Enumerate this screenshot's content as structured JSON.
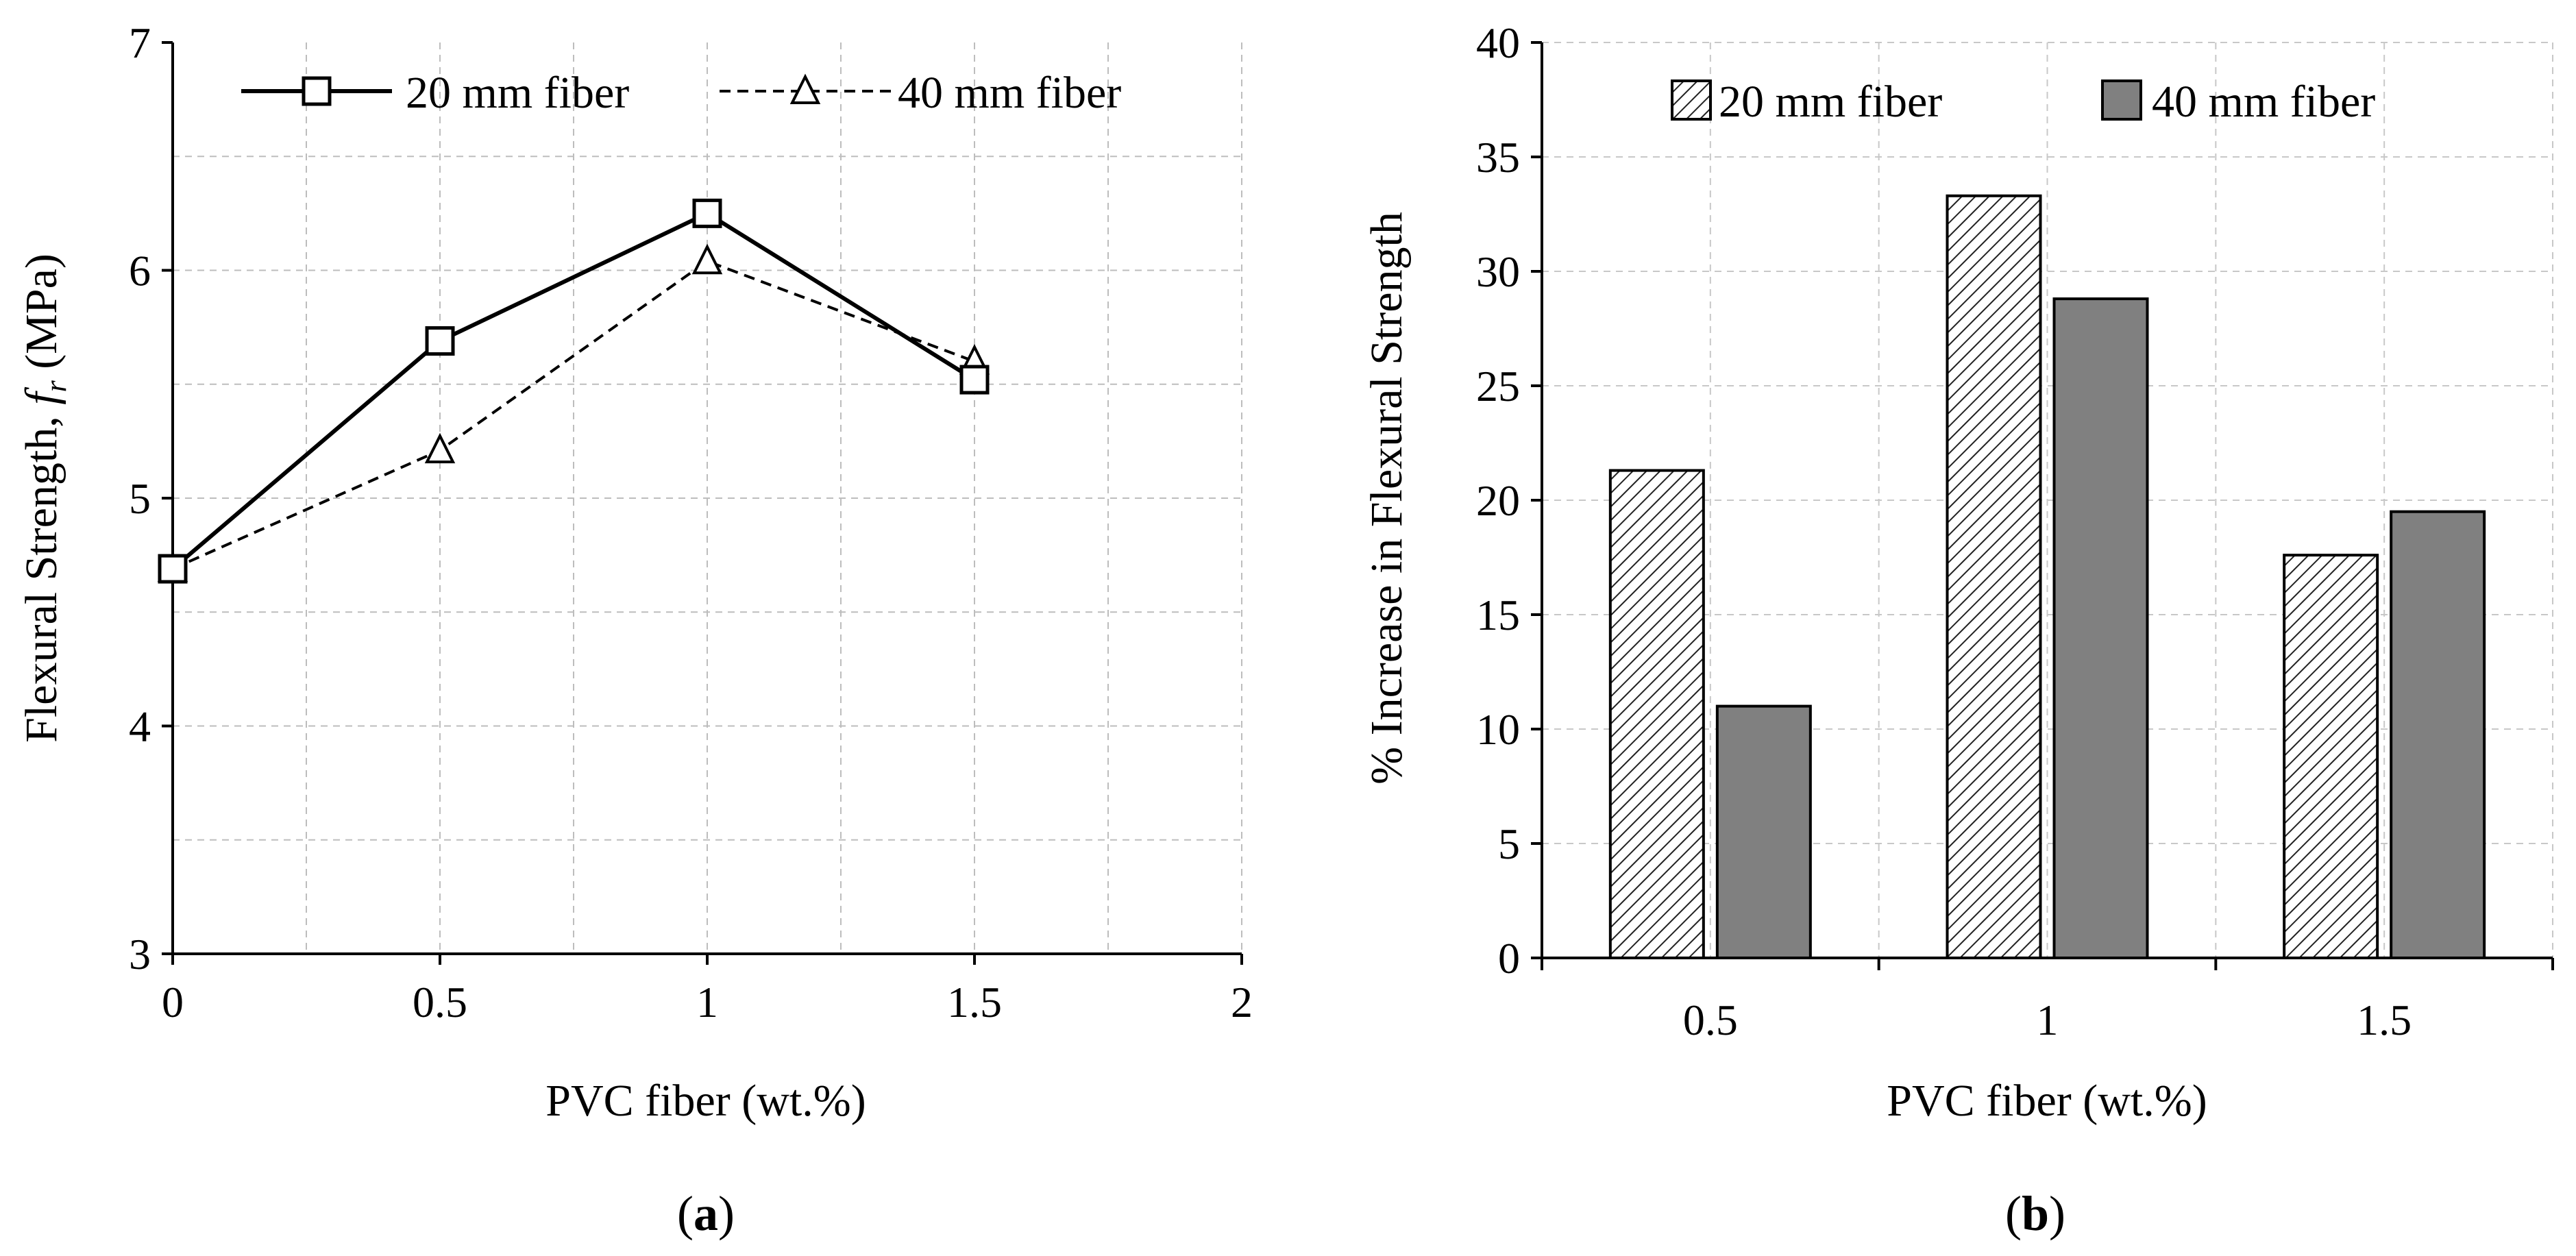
{
  "chart_data": [
    {
      "type": "line",
      "panel_label": "(a)",
      "panel_letter": "a",
      "xlabel": "PVC fiber (wt.%)",
      "ylabel_main": "Flexural Strength, ",
      "ylabel_symbol": "f",
      "ylabel_sub": "r",
      "ylabel_unit": " (MPa)",
      "xlim": [
        0,
        2
      ],
      "ylim": [
        3,
        7
      ],
      "xticks": [
        "0",
        "0.5",
        "1",
        "1.5",
        "2"
      ],
      "yticks": [
        "3",
        "4",
        "5",
        "6",
        "7"
      ],
      "grid": true,
      "legend_position": "top",
      "series": [
        {
          "name": "20 mm fiber",
          "marker": "square",
          "line": "solid",
          "x": [
            0,
            0.5,
            1,
            1.5
          ],
          "values": [
            4.69,
            5.69,
            6.25,
            5.52
          ]
        },
        {
          "name": "40 mm fiber",
          "marker": "triangle",
          "line": "dashed",
          "x": [
            0,
            0.5,
            1,
            1.5
          ],
          "values": [
            4.69,
            5.21,
            6.04,
            5.6
          ]
        }
      ]
    },
    {
      "type": "bar",
      "panel_label": "(b)",
      "panel_letter": "b",
      "xlabel": "PVC fiber (wt.%)",
      "ylabel": "% Increase in Flexural Strength",
      "categories": [
        "0.5",
        "1",
        "1.5"
      ],
      "ylim": [
        0,
        40
      ],
      "yticks": [
        "0",
        "5",
        "10",
        "15",
        "20",
        "25",
        "30",
        "35",
        "40"
      ],
      "grid": true,
      "legend_position": "top",
      "series": [
        {
          "name": "20 mm fiber",
          "fill": "hatched",
          "values": [
            21.3,
            33.3,
            17.6
          ]
        },
        {
          "name": "40 mm fiber",
          "fill": "#808080",
          "values": [
            11.0,
            28.8,
            19.5
          ]
        }
      ]
    }
  ]
}
